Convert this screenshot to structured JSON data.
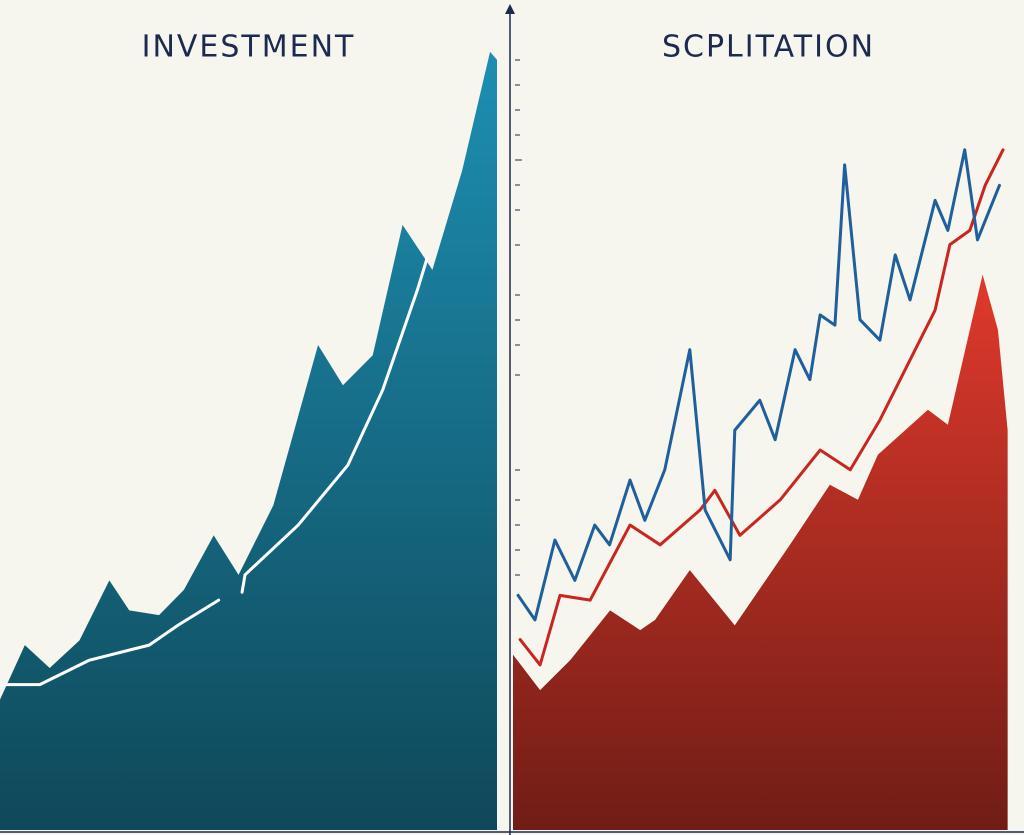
{
  "chart_data": [
    {
      "type": "area",
      "title": "INVESTMENT",
      "xlim": [
        0,
        100
      ],
      "ylim": [
        0,
        100
      ],
      "series": [
        {
          "fill": true,
          "color": "#1d8fb2",
          "x": [
            0,
            5,
            10,
            16,
            22,
            26,
            32,
            37,
            43,
            48,
            55,
            64,
            69,
            75,
            81,
            87,
            93,
            98.6,
            100
          ],
          "values": [
            16.5,
            23.4,
            20.5,
            24,
            31.6,
            27.8,
            27.2,
            30.4,
            37.3,
            32.3,
            41.1,
            61.4,
            56.3,
            60.1,
            76.6,
            70.9,
            83.5,
            98.5,
            97.5
          ]
        },
        {
          "fill": false,
          "color": "#ffffff",
          "x": [
            0,
            8,
            18,
            30,
            36,
            44,
            46,
            48.7,
            49.3,
            60,
            70,
            77,
            84,
            86
          ],
          "values": [
            18.4,
            18.4,
            21.5,
            23.4,
            26,
            29.1,
            null,
            30.1,
            32.3,
            38.6,
            46.2,
            55.7,
            68.4,
            72.5
          ]
        }
      ]
    },
    {
      "type": "area",
      "title": "SCPLITATION",
      "xlim": [
        0,
        100
      ],
      "ylim": [
        0,
        100
      ],
      "series": [
        {
          "fill": true,
          "color": "#e0392c",
          "x": [
            0,
            5.3,
            11.2,
            19,
            24.9,
            27.8,
            34.6,
            43.4,
            54.2,
            62,
            67.5,
            71.4,
            81.2,
            85.1,
            91.9,
            94.9,
            96.8
          ],
          "values": [
            22.2,
            17.7,
            21.5,
            27.8,
            25.3,
            26.6,
            32.9,
            25.9,
            36.1,
            43.7,
            41.8,
            47.5,
            53.2,
            51.3,
            70.3,
            63.3,
            50.6
          ]
        },
        {
          "fill": false,
          "color": "#c8261f",
          "x": [
            1.4,
            5.3,
            9.2,
            15.1,
            22.9,
            28.8,
            36.6,
            39.5,
            44.4,
            52.3,
            60.1,
            66,
            71.8,
            77.7,
            82.6,
            85.5,
            89.4,
            92.4,
            95.9
          ],
          "values": [
            24.1,
            20.9,
            29.7,
            29.1,
            38.6,
            36.1,
            40.5,
            43,
            37.3,
            41.8,
            48.1,
            45.6,
            51.9,
            59.5,
            65.8,
            74.1,
            75.9,
            81.6,
            86.1
          ]
        },
        {
          "fill": false,
          "color": "#1f5f9c",
          "x": [
            1,
            4.3,
            8.2,
            12.1,
            16,
            18.9,
            22.9,
            25.8,
            29.7,
            34.6,
            37.6,
            42.5,
            43.4,
            48.3,
            51.3,
            55.2,
            58.1,
            60.1,
            63,
            64.9,
            67.9,
            71.8,
            74.8,
            77.7,
            82.6,
            85.1,
            88.4,
            90.9,
            95.2
          ],
          "values": [
            29.7,
            26.6,
            36.7,
            31.6,
            38.6,
            36.1,
            44.3,
            39.2,
            45.6,
            60.8,
            40.5,
            34.2,
            50.6,
            54.4,
            49.4,
            60.8,
            57,
            65.2,
            63.9,
            84.2,
            64.6,
            62,
            72.8,
            67.1,
            79.7,
            75.9,
            86.1,
            74.7,
            81.6
          ]
        }
      ]
    }
  ]
}
